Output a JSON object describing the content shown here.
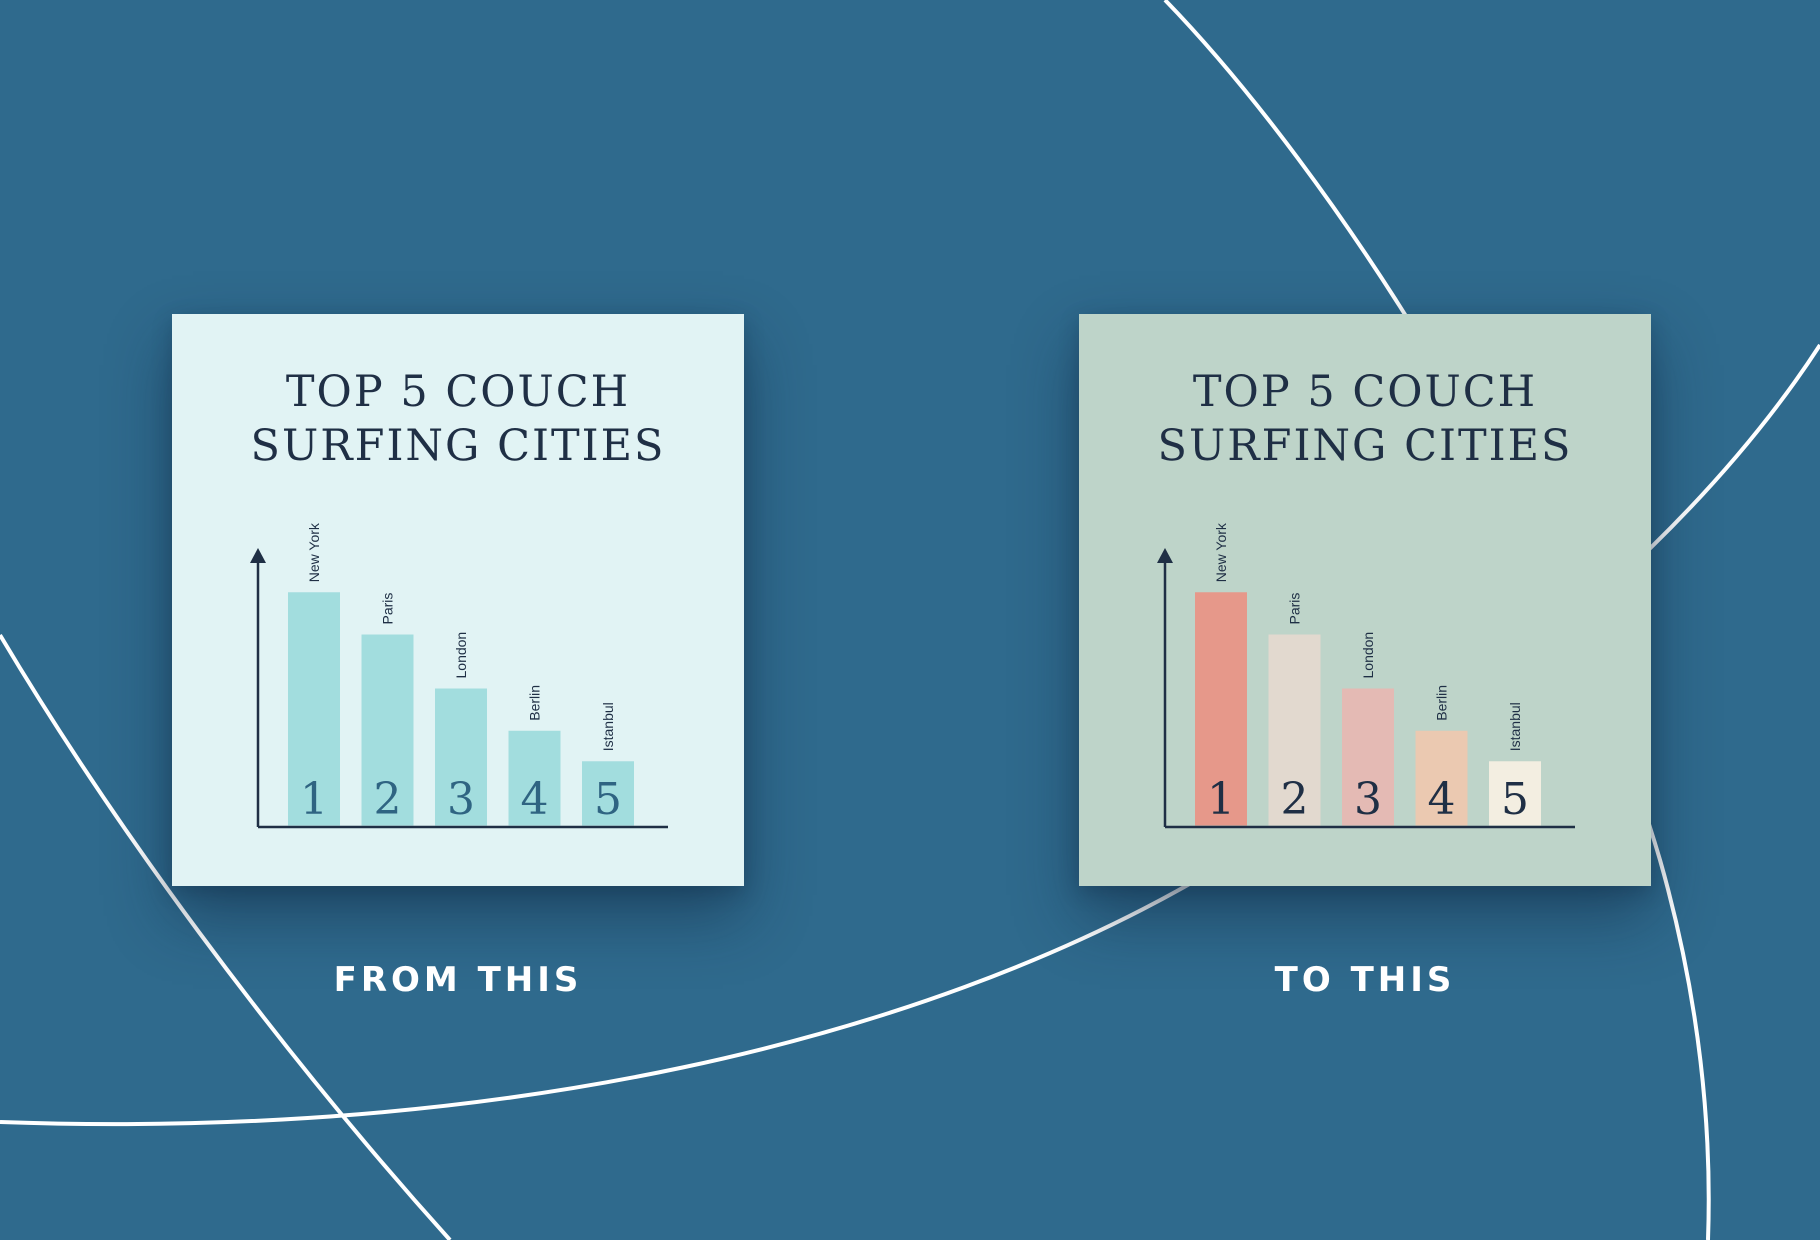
{
  "colors": {
    "background": "#2f6a8d",
    "decor_line": "#ffffff",
    "ink": "#1f2f45",
    "caption": "#ffffff"
  },
  "chart_data": [
    {
      "type": "bar",
      "title": "TOP 5 COUCH SURFING CITIES",
      "title_lines": [
        "TOP 5 COUCH",
        "SURFING CITIES"
      ],
      "categories": [
        "New York",
        "Paris",
        "London",
        "Berlin",
        "Istanbul"
      ],
      "ranks": [
        "1",
        "2",
        "3",
        "4",
        "5"
      ],
      "values": [
        100,
        82,
        59,
        41,
        28
      ],
      "ylim": [
        0,
        118
      ],
      "xlabel": "",
      "ylabel": "",
      "grid": false,
      "axis_ticks": false,
      "panel_color": "#e1f3f4",
      "bar_colors": [
        "#a2ddde",
        "#a2ddde",
        "#a2ddde",
        "#a2ddde",
        "#a2ddde"
      ],
      "rank_color": "#2f6482",
      "caption": "FROM THIS"
    },
    {
      "type": "bar",
      "title": "TOP 5 COUCH SURFING CITIES",
      "title_lines": [
        "TOP 5 COUCH",
        "SURFING CITIES"
      ],
      "categories": [
        "New York",
        "Paris",
        "London",
        "Berlin",
        "Istanbul"
      ],
      "ranks": [
        "1",
        "2",
        "3",
        "4",
        "5"
      ],
      "values": [
        100,
        82,
        59,
        41,
        28
      ],
      "ylim": [
        0,
        118
      ],
      "xlabel": "",
      "ylabel": "",
      "grid": false,
      "axis_ticks": false,
      "panel_color": "#bed4c9",
      "bar_colors": [
        "#e6988a",
        "#e2d9cf",
        "#e4bab4",
        "#ebc9b1",
        "#f3eee1"
      ],
      "rank_color": "#1f2f45",
      "caption": "TO THIS"
    }
  ]
}
